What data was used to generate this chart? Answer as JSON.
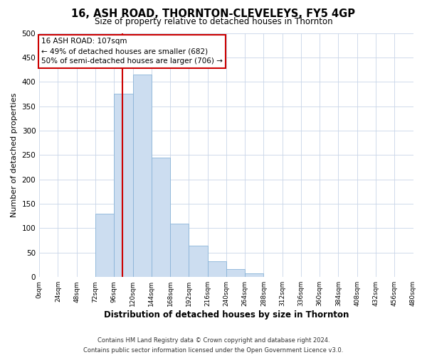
{
  "title": "16, ASH ROAD, THORNTON-CLEVELEYS, FY5 4GP",
  "subtitle": "Size of property relative to detached houses in Thornton",
  "xlabel": "Distribution of detached houses by size in Thornton",
  "ylabel": "Number of detached properties",
  "footer_line1": "Contains HM Land Registry data © Crown copyright and database right 2024.",
  "footer_line2": "Contains public sector information licensed under the Open Government Licence v3.0.",
  "bar_edges": [
    0,
    24,
    48,
    72,
    96,
    120,
    144,
    168,
    192,
    216,
    240,
    264,
    288,
    312,
    336,
    360,
    384,
    408,
    432,
    456,
    480
  ],
  "bar_heights": [
    0,
    0,
    0,
    130,
    375,
    415,
    245,
    110,
    65,
    33,
    17,
    7,
    0,
    0,
    0,
    0,
    0,
    0,
    0,
    0
  ],
  "bar_color": "#ccddf0",
  "bar_edgecolor": "#8ab4d8",
  "vline_x": 107,
  "vline_color": "#cc0000",
  "ylim": [
    0,
    500
  ],
  "xlim": [
    0,
    480
  ],
  "annotation_title": "16 ASH ROAD: 107sqm",
  "annotation_line2": "← 49% of detached houses are smaller (682)",
  "annotation_line3": "50% of semi-detached houses are larger (706) →",
  "annotation_box_edgecolor": "#cc0000",
  "annotation_box_facecolor": "#ffffff",
  "tick_labels": [
    "0sqm",
    "24sqm",
    "48sqm",
    "72sqm",
    "96sqm",
    "120sqm",
    "144sqm",
    "168sqm",
    "192sqm",
    "216sqm",
    "240sqm",
    "264sqm",
    "288sqm",
    "312sqm",
    "336sqm",
    "360sqm",
    "384sqm",
    "408sqm",
    "432sqm",
    "456sqm",
    "480sqm"
  ],
  "yticks": [
    0,
    50,
    100,
    150,
    200,
    250,
    300,
    350,
    400,
    450,
    500
  ],
  "background_color": "#ffffff",
  "grid_color": "#c8d4e8",
  "title_fontsize": 10.5,
  "subtitle_fontsize": 8.5
}
